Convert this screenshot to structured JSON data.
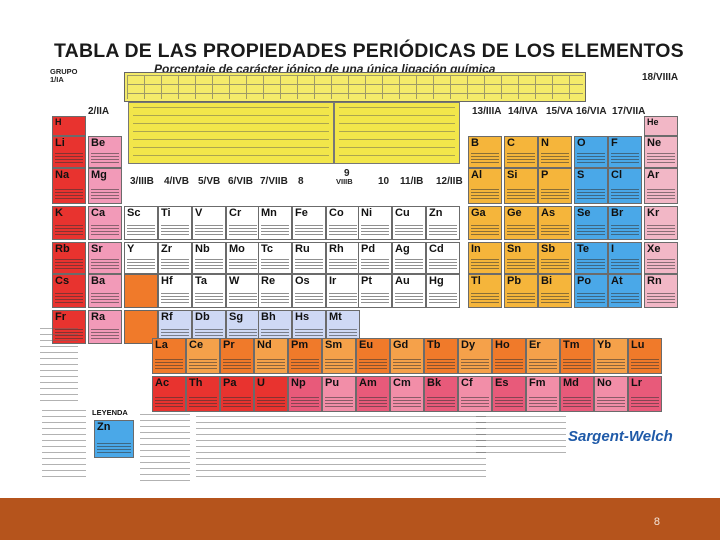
{
  "title": "TABLA DE LAS PROPIEDADES PERIÓDICAS DE LOS ELEMENTOS",
  "subtitle": "Porcentaje de carácter iónico de una única ligación química",
  "groups": {
    "g1": "GRUPO 1/IA",
    "g2": "2/IIA",
    "g3": "3/IIIB",
    "g4": "4/IVB",
    "g5": "5/VB",
    "g6": "6/VIB",
    "g7": "7/VIIB",
    "g8": "8",
    "g9": "9",
    "g9b": "VIIIB",
    "g10": "10",
    "g11": "11/IB",
    "g12": "12/IIB",
    "g13": "13/IIIA",
    "g14": "14/IVA",
    "g15": "15/VA",
    "g16": "16/VIA",
    "g17": "17/VIIA",
    "g18": "18/VIIIA"
  },
  "elements": {
    "period1": [
      "H",
      "He"
    ],
    "period2": [
      "Li",
      "Be",
      "B",
      "C",
      "N",
      "O",
      "F",
      "Ne"
    ],
    "period3": [
      "Na",
      "Mg",
      "Al",
      "Si",
      "P",
      "S",
      "Cl",
      "Ar"
    ],
    "period4": [
      "K",
      "Ca",
      "Sc",
      "Ti",
      "V",
      "Cr",
      "Mn",
      "Fe",
      "Co",
      "Ni",
      "Cu",
      "Zn",
      "Ga",
      "Ge",
      "As",
      "Se",
      "Br",
      "Kr"
    ],
    "period5": [
      "Rb",
      "Sr",
      "Y",
      "Zr",
      "Nb",
      "Mo",
      "Tc",
      "Ru",
      "Rh",
      "Pd",
      "Ag",
      "Cd",
      "In",
      "Sn",
      "Sb",
      "Te",
      "I",
      "Xe"
    ],
    "period6": [
      "Cs",
      "Ba",
      "",
      "Hf",
      "Ta",
      "W",
      "Re",
      "Os",
      "Ir",
      "Pt",
      "Au",
      "Hg",
      "Tl",
      "Pb",
      "Bi",
      "Po",
      "At",
      "Rn"
    ],
    "period7": [
      "Fr",
      "Ra",
      "",
      "Rf",
      "Db",
      "Sg",
      "Bh",
      "Hs",
      "Mt",
      "",
      "",
      "",
      "",
      "",
      "",
      "",
      "",
      ""
    ],
    "lanthanides": [
      "La",
      "Ce",
      "Pr",
      "Nd",
      "Pm",
      "Sm",
      "Eu",
      "Gd",
      "Tb",
      "Dy",
      "Ho",
      "Er",
      "Tm",
      "Yb",
      "Lu"
    ],
    "actinides": [
      "Ac",
      "Th",
      "Pa",
      "U",
      "Np",
      "Pu",
      "Am",
      "Cm",
      "Bk",
      "Cf",
      "Es",
      "Fm",
      "Md",
      "No",
      "Lr"
    ]
  },
  "legend": {
    "title": "LEYENDA",
    "sample_symbol": "Zn"
  },
  "brand": "Sargent-Welch",
  "page_number": "8",
  "colors": {
    "footer": "#b5541c",
    "alkali": "#e8332f",
    "yellow_panel": "#f2e64a",
    "transition": "#ffffff",
    "lanthanide": "#f07a2a",
    "nonmetal": "#4aa8e8",
    "brand": "#1f5aa8"
  }
}
